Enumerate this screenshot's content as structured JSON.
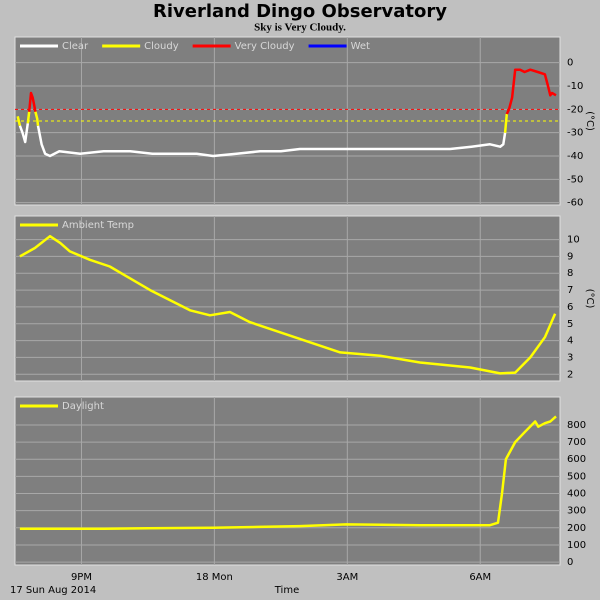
{
  "title": "Riverland Dingo Observatory",
  "subtitle": "Sky is Very Cloudy.",
  "x_axis": {
    "label": "Time",
    "note": "17 Sun Aug 2014",
    "xlim": [
      19.5,
      31.8
    ],
    "xticks": [
      {
        "value": 21,
        "label": "9PM"
      },
      {
        "value": 24,
        "label": "18 Mon"
      },
      {
        "value": 27,
        "label": "3AM"
      },
      {
        "value": 30,
        "label": "6AM"
      }
    ]
  },
  "chart_data": [
    {
      "type": "line",
      "ylabel": "(°C)",
      "ylim": [
        -61,
        11
      ],
      "yticks": [
        0,
        -10,
        -20,
        -30,
        -40,
        -50,
        -60
      ],
      "grid": true,
      "thresholds": [
        {
          "value": -20,
          "color": "#ff0000"
        },
        {
          "value": -25,
          "color": "#ffff00"
        }
      ],
      "series": [
        {
          "name": "Clear",
          "color": "#ffffff",
          "x": [
            19.61,
            19.67,
            19.73,
            19.79,
            19.9,
            20.02,
            20.1,
            20.18,
            20.29,
            20.5,
            20.97,
            21.5,
            22.1,
            22.6,
            23.22,
            23.6,
            23.97,
            24.5,
            25.03,
            25.5,
            25.93,
            26.5,
            26.97,
            27.5,
            28.19,
            28.8,
            29.32,
            29.8,
            30.22,
            30.45,
            30.52,
            30.56
          ],
          "values": [
            -27,
            -30,
            -34,
            -26,
            null,
            -27,
            -35,
            -39,
            -40,
            -38,
            -39,
            -38,
            -38,
            -39,
            -39,
            -39,
            -40,
            -39,
            -38,
            -38,
            -37,
            -37,
            -37,
            -37,
            -37,
            -37,
            -37,
            -36,
            -35,
            -36,
            -35,
            -30
          ]
        },
        {
          "name": "Cloudy",
          "color": "#ffff00",
          "x": [
            19.56,
            19.61,
            19.7,
            19.79,
            19.82,
            19.9,
            19.96,
            20.0,
            20.02,
            20.3,
            30.56,
            30.6
          ],
          "values": [
            -23,
            -27,
            null,
            -26,
            -21,
            null,
            -21,
            -24,
            -27,
            null,
            -30,
            -22
          ]
        },
        {
          "name": "Very Cloudy",
          "color": "#ff0000",
          "x": [
            19.82,
            19.86,
            19.9,
            19.93,
            19.96,
            20.5,
            30.6,
            30.65,
            30.72,
            30.79,
            30.9,
            31.0,
            31.13,
            31.3,
            31.46,
            31.53,
            31.58,
            31.62,
            31.71
          ],
          "values": [
            -21,
            -13,
            -15,
            -18,
            -21,
            null,
            -22,
            -20,
            -15,
            -3,
            -3,
            -4,
            -3,
            -4,
            -5,
            -10,
            -14,
            -13,
            -14
          ]
        },
        {
          "name": "Wet",
          "color": "#0000ff",
          "x": [],
          "values": []
        }
      ]
    },
    {
      "type": "line",
      "ylabel": "(°C)",
      "ylim": [
        1.6,
        11.4
      ],
      "yticks": [
        2,
        3,
        4,
        5,
        6,
        7,
        8,
        9,
        10
      ],
      "grid": true,
      "series": [
        {
          "name": "Ambient Temp",
          "color": "#ffff00",
          "x": [
            19.61,
            19.95,
            20.29,
            20.52,
            20.74,
            21.19,
            21.64,
            22.55,
            23.45,
            23.9,
            24.35,
            24.8,
            25.93,
            26.84,
            27.74,
            28.64,
            29.77,
            30.45,
            30.79,
            31.13,
            31.46,
            31.69
          ],
          "values": [
            9.0,
            9.5,
            10.2,
            9.8,
            9.3,
            8.8,
            8.4,
            7.0,
            5.8,
            5.5,
            5.7,
            5.1,
            4.1,
            3.3,
            3.1,
            2.7,
            2.4,
            2.05,
            2.1,
            3.0,
            4.2,
            5.6
          ]
        }
      ]
    },
    {
      "type": "line",
      "ylim": [
        -17,
        963
      ],
      "yticks": [
        0,
        100,
        200,
        300,
        400,
        500,
        600,
        700,
        800
      ],
      "grid": true,
      "series": [
        {
          "name": "Daylight",
          "color": "#ffff00",
          "x": [
            19.61,
            20.5,
            21.5,
            22.5,
            23.97,
            25.0,
            25.93,
            26.97,
            28.64,
            30.22,
            30.4,
            30.49,
            30.58,
            30.79,
            31.01,
            31.24,
            31.31,
            31.46,
            31.58,
            31.71
          ],
          "values": [
            195,
            195,
            195,
            197,
            200,
            205,
            210,
            220,
            215,
            215,
            230,
            400,
            600,
            700,
            760,
            820,
            790,
            810,
            820,
            850
          ]
        }
      ]
    }
  ]
}
